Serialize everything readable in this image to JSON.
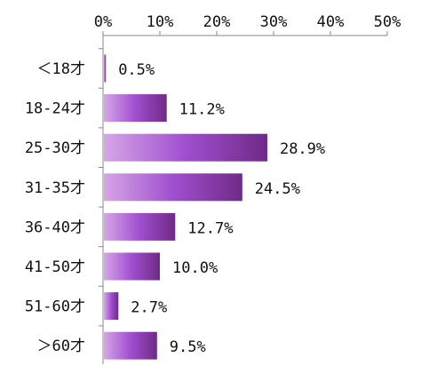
{
  "chart_data": {
    "type": "bar",
    "orientation": "horizontal",
    "categories": [
      "＜18才",
      "18-24才",
      "25-30才",
      "31-35才",
      "36-40才",
      "41-50才",
      "51-60才",
      "＞60才"
    ],
    "values": [
      0.5,
      11.2,
      28.9,
      24.5,
      12.7,
      10.0,
      2.7,
      9.5
    ],
    "data_labels": [
      "0.5%",
      "11.2%",
      "28.9%",
      "24.5%",
      "12.7%",
      "10.0%",
      "2.7%",
      "9.5%"
    ],
    "xlim": [
      0,
      50
    ],
    "x_ticks": [
      0,
      10,
      20,
      30,
      40,
      50
    ],
    "x_tick_labels": [
      "0%",
      "10%",
      "20%",
      "30%",
      "40%",
      "50%"
    ],
    "x_axis_position": "top",
    "grid": false,
    "legend": "none",
    "colors": {
      "bar_light": "#d6a6e6",
      "bar_mid": "#a04fcf",
      "bar_dark": "#6f2a86",
      "axis": "#888888"
    }
  }
}
